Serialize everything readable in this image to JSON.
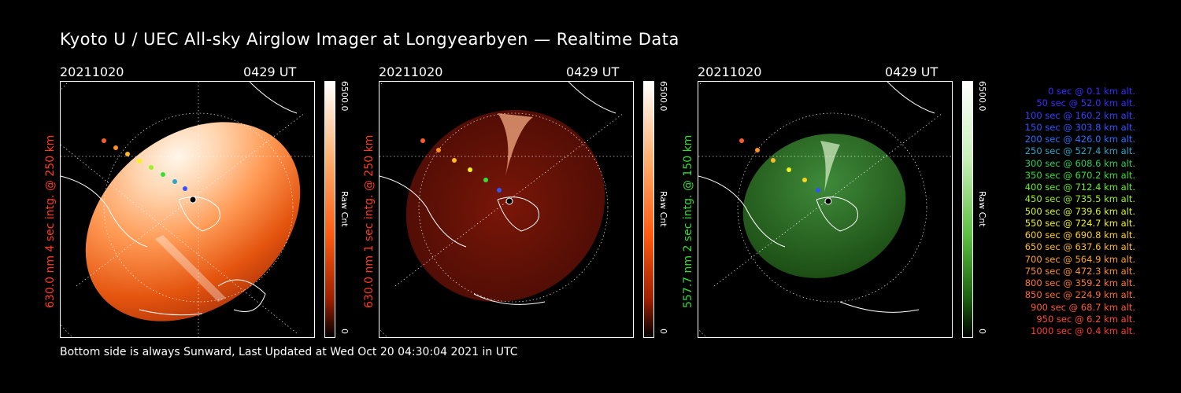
{
  "title": "Kyoto U / UEC All-sky Airglow Imager at Longyearbyen — Realtime Data",
  "footer": "Bottom side is always Sunward, Last Updated at Wed Oct 20 04:30:04 2021 in UTC",
  "panels": [
    {
      "date": "20211020",
      "time": "0429 UT",
      "label": "630.0 nm 4 sec intg. @ 250 km",
      "label_color": "#ff3b1f",
      "cbar_max": "6500.0",
      "cbar_unit": "Raw Cnt",
      "cbar_min": "0"
    },
    {
      "date": "20211020",
      "time": "0429 UT",
      "label": "630.0 nm 1 sec intg. @ 250 km",
      "label_color": "#ff3b1f",
      "cbar_max": "6500.0",
      "cbar_unit": "Raw Cnt",
      "cbar_min": "0"
    },
    {
      "date": "20211020",
      "time": "0429 UT",
      "label": "557.7 nm 2 sec intg. @ 150 km",
      "label_color": "#33dd33",
      "cbar_max": "6500.0",
      "cbar_unit": "Raw Cnt",
      "cbar_min": "0"
    }
  ],
  "legend": [
    {
      "text": "0 sec @   0.1 km alt.",
      "color": "#3a2cff"
    },
    {
      "text": "50 sec @  52.0 km alt.",
      "color": "#3a2cff"
    },
    {
      "text": "100 sec @ 160.2 km alt.",
      "color": "#3340ff"
    },
    {
      "text": "150 sec @ 303.8 km alt.",
      "color": "#2f55ff"
    },
    {
      "text": "200 sec @ 426.0 km alt.",
      "color": "#2a70ff"
    },
    {
      "text": "250 sec @ 527.4 km alt.",
      "color": "#2aa6c8"
    },
    {
      "text": "300 sec @ 608.6 km alt.",
      "color": "#2ccf5a"
    },
    {
      "text": "350 sec @ 670.2 km alt.",
      "color": "#33e033"
    },
    {
      "text": "400 sec @ 712.4 km alt.",
      "color": "#66ee22"
    },
    {
      "text": "450 sec @ 735.5 km alt.",
      "color": "#9cf222"
    },
    {
      "text": "500 sec @ 739.6 km alt.",
      "color": "#d6f51f"
    },
    {
      "text": "550 sec @ 724.7 km alt.",
      "color": "#f2f21c"
    },
    {
      "text": "600 sec @ 690.8 km alt.",
      "color": "#ffd21c"
    },
    {
      "text": "650 sec @ 637.6 km alt.",
      "color": "#ffba22"
    },
    {
      "text": "700 sec @ 564.9 km alt.",
      "color": "#ffa323"
    },
    {
      "text": "750 sec @ 472.3 km alt.",
      "color": "#ff9026"
    },
    {
      "text": "800 sec @ 359.2 km alt.",
      "color": "#ff7a28"
    },
    {
      "text": "850 sec @ 224.9 km alt.",
      "color": "#ff6a2a"
    },
    {
      "text": "900 sec @  68.7 km alt.",
      "color": "#ff5a2c"
    },
    {
      "text": "950 sec @   6.2 km alt.",
      "color": "#ff4a2e"
    },
    {
      "text": "1000 sec @   0.4 km alt.",
      "color": "#ff3a30"
    }
  ]
}
